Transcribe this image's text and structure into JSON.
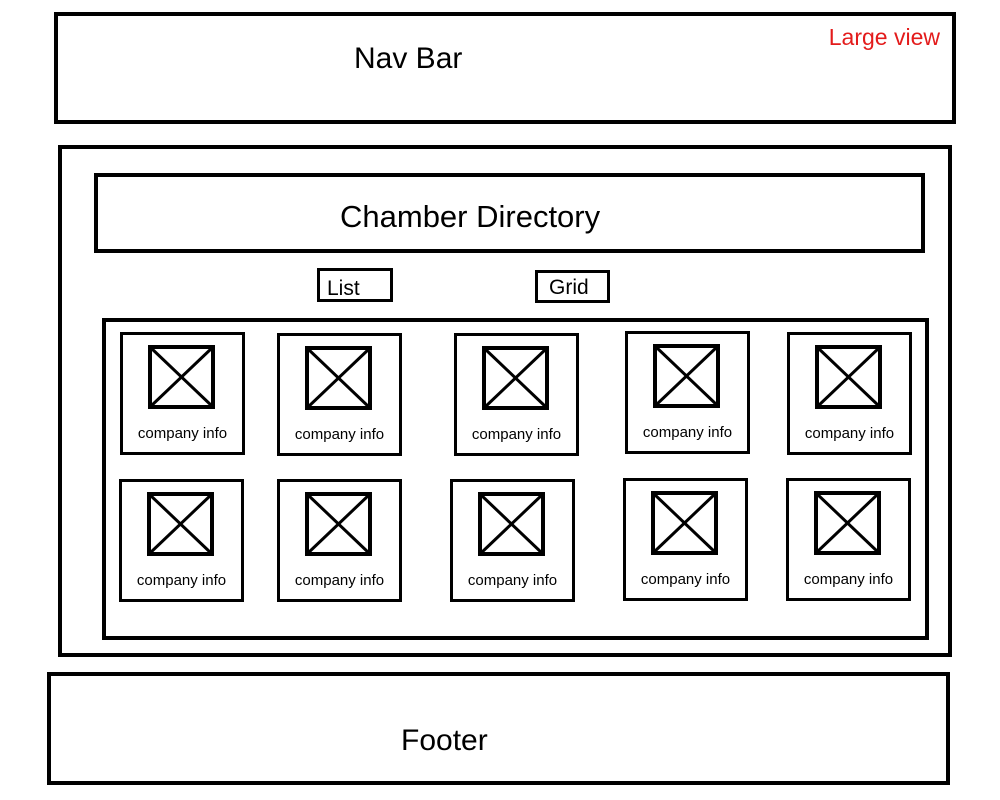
{
  "nav": {
    "label": "Nav Bar",
    "view_label": "Large view",
    "view_label_color": "#e31b1b"
  },
  "main": {
    "title": "Chamber Directory",
    "list_label": "List",
    "grid_label": "Grid",
    "cards": [
      {
        "info": "company info",
        "image_icon": "image-placeholder-icon"
      },
      {
        "info": "company info",
        "image_icon": "image-placeholder-icon"
      },
      {
        "info": "company info",
        "image_icon": "image-placeholder-icon"
      },
      {
        "info": "company info",
        "image_icon": "image-placeholder-icon"
      },
      {
        "info": "company info",
        "image_icon": "image-placeholder-icon"
      },
      {
        "info": "company info",
        "image_icon": "image-placeholder-icon"
      },
      {
        "info": "company info",
        "image_icon": "image-placeholder-icon"
      },
      {
        "info": "company info",
        "image_icon": "image-placeholder-icon"
      },
      {
        "info": "company info",
        "image_icon": "image-placeholder-icon"
      },
      {
        "info": "company info",
        "image_icon": "image-placeholder-icon"
      }
    ]
  },
  "footer": {
    "label": "Footer"
  }
}
